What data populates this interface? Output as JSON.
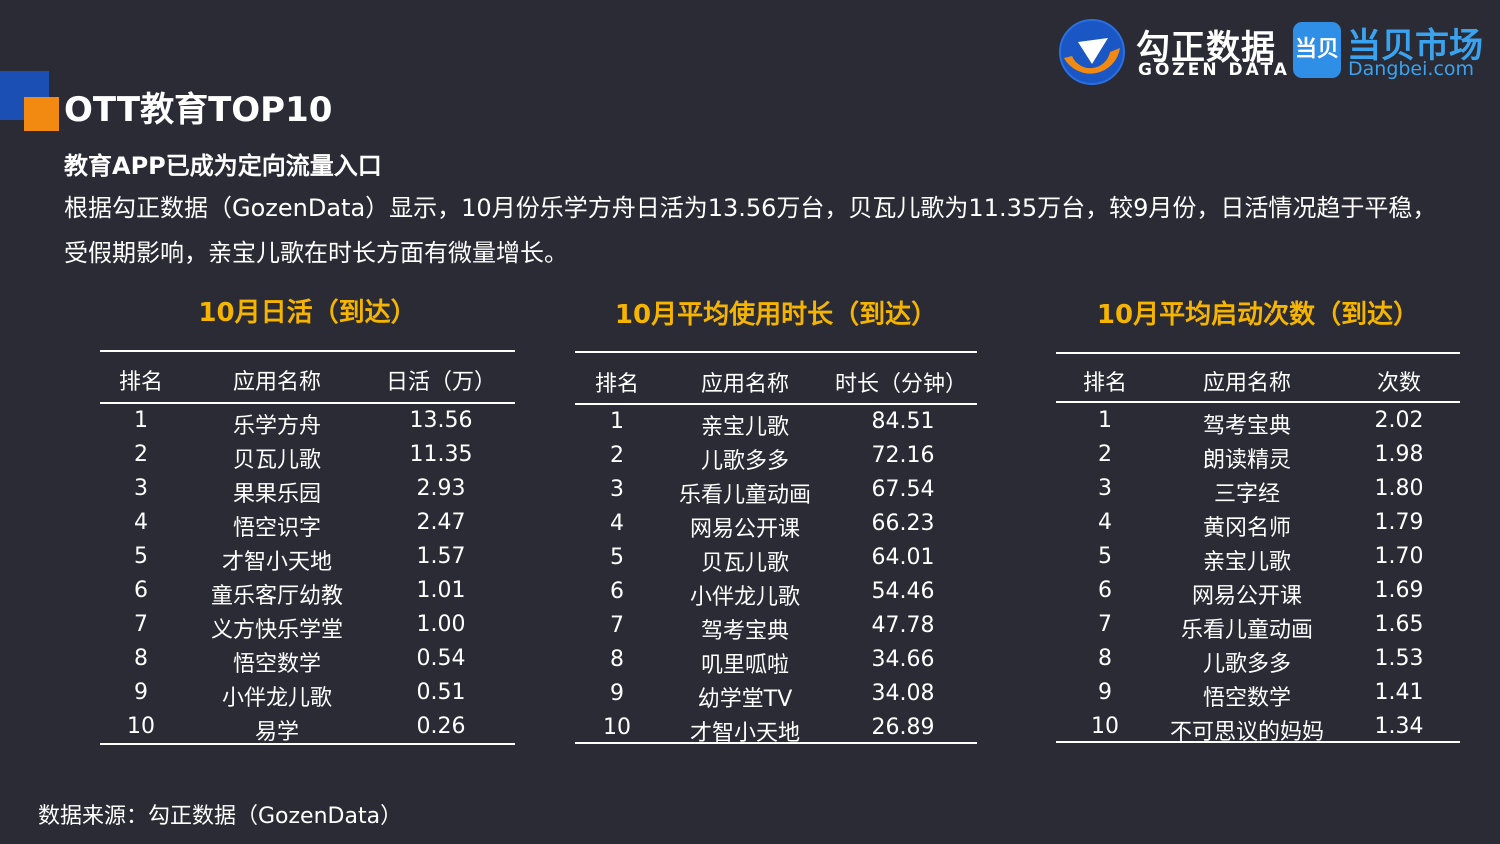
{
  "header": {
    "title": "OTT教育TOP10",
    "subtitle": "教育APP已成为定向流量入口",
    "body": "根据勾正数据（GozenData）显示，10月份乐学方舟日活为13.56万台，贝瓦儿歌为11.35万台，较9月份，日活情况趋于平稳，受假期影响，亲宝儿歌在时长方面有微量增长。"
  },
  "logos": {
    "gozen_cn": "勾正数据",
    "gozen_en": "GOZEN DATA",
    "dangbei_badge": "当贝",
    "dangbei_cn": "当贝市场",
    "dangbei_en": "Dangbei.com"
  },
  "colors": {
    "background": "#2a2b34",
    "accent_orange": "#f28a12",
    "accent_blue": "#1c4fb4",
    "table_title": "#f5b400"
  },
  "tables": [
    {
      "title": "10月日活（到达）",
      "headers": [
        "排名",
        "应用名称",
        "日活（万）"
      ],
      "rows": [
        [
          "1",
          "乐学方舟",
          "13.56"
        ],
        [
          "2",
          "贝瓦儿歌",
          "11.35"
        ],
        [
          "3",
          "果果乐园",
          "2.93"
        ],
        [
          "4",
          "悟空识字",
          "2.47"
        ],
        [
          "5",
          "才智小天地",
          "1.57"
        ],
        [
          "6",
          "童乐客厅幼教",
          "1.01"
        ],
        [
          "7",
          "义方快乐学堂",
          "1.00"
        ],
        [
          "8",
          "悟空数学",
          "0.54"
        ],
        [
          "9",
          "小伴龙儿歌",
          "0.51"
        ],
        [
          "10",
          "易学",
          "0.26"
        ]
      ]
    },
    {
      "title": "10月平均使用时长（到达）",
      "headers": [
        "排名",
        "应用名称",
        "时长（分钟）"
      ],
      "rows": [
        [
          "1",
          "亲宝儿歌",
          "84.51"
        ],
        [
          "2",
          "儿歌多多",
          "72.16"
        ],
        [
          "3",
          "乐看儿童动画",
          "67.54"
        ],
        [
          "4",
          "网易公开课",
          "66.23"
        ],
        [
          "5",
          "贝瓦儿歌",
          "64.01"
        ],
        [
          "6",
          "小伴龙儿歌",
          "54.46"
        ],
        [
          "7",
          "驾考宝典",
          "47.78"
        ],
        [
          "8",
          "叽里呱啦",
          "34.66"
        ],
        [
          "9",
          "幼学堂TV",
          "34.08"
        ],
        [
          "10",
          "才智小天地",
          "26.89"
        ]
      ]
    },
    {
      "title": "10月平均启动次数（到达）",
      "headers": [
        "排名",
        "应用名称",
        "次数"
      ],
      "rows": [
        [
          "1",
          "驾考宝典",
          "2.02"
        ],
        [
          "2",
          "朗读精灵",
          "1.98"
        ],
        [
          "3",
          "三字经",
          "1.80"
        ],
        [
          "4",
          "黄冈名师",
          "1.79"
        ],
        [
          "5",
          "亲宝儿歌",
          "1.70"
        ],
        [
          "6",
          "网易公开课",
          "1.69"
        ],
        [
          "7",
          "乐看儿童动画",
          "1.65"
        ],
        [
          "8",
          "儿歌多多",
          "1.53"
        ],
        [
          "9",
          "悟空数学",
          "1.41"
        ],
        [
          "10",
          "不可思议的妈妈",
          "1.34"
        ]
      ]
    }
  ],
  "footer": {
    "source": "数据来源：勾正数据（GozenData）"
  }
}
